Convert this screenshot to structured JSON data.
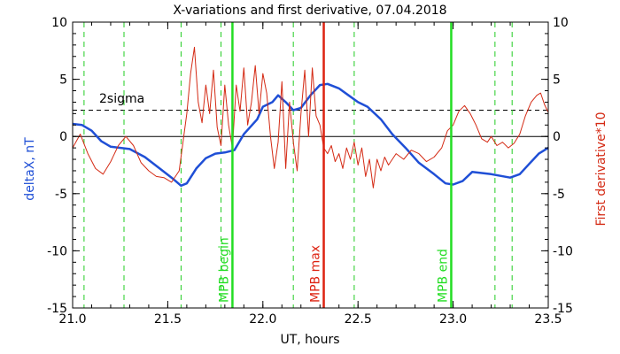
{
  "chart_data": {
    "type": "line",
    "title": "X-variations and first derivative, 07.04.2018",
    "xlabel": "UT, hours",
    "ylabel_left": "deltaX, nT",
    "ylabel_right": "First derivative*10",
    "xlim": [
      21.0,
      23.5
    ],
    "ylim": [
      -15,
      10
    ],
    "x_ticks": [
      "21.0",
      "21.5",
      "22.0",
      "22.5",
      "23.0",
      "23.5"
    ],
    "y_ticks": [
      "-15",
      "-10",
      "-5",
      "0",
      "5",
      "10"
    ],
    "sigma_label": "2sigma",
    "sigma_level": 2.3,
    "colors": {
      "deltaX": "#1f4fd6",
      "derivative": "#d42a14",
      "mpb_green": "#22dd22",
      "mpb_red": "#dd2211",
      "dashed_green": "#22cc22"
    },
    "markers": [
      {
        "label": "MPB begin",
        "x": 21.84,
        "color": "#22dd22"
      },
      {
        "label": "MPB max",
        "x": 22.32,
        "color": "#dd2211"
      },
      {
        "label": "MPB end",
        "x": 22.99,
        "color": "#22dd22"
      }
    ],
    "dashed_lines_x": [
      21.06,
      21.27,
      21.57,
      21.78,
      22.16,
      22.48,
      23.22,
      23.31
    ],
    "series": [
      {
        "id": "deltaX",
        "values": [
          [
            21.0,
            1.1
          ],
          [
            21.05,
            1.0
          ],
          [
            21.1,
            0.5
          ],
          [
            21.15,
            -0.4
          ],
          [
            21.2,
            -0.9
          ],
          [
            21.3,
            -1.1
          ],
          [
            21.38,
            -1.8
          ],
          [
            21.45,
            -2.7
          ],
          [
            21.52,
            -3.6
          ],
          [
            21.57,
            -4.3
          ],
          [
            21.6,
            -4.1
          ],
          [
            21.65,
            -2.8
          ],
          [
            21.7,
            -1.9
          ],
          [
            21.75,
            -1.5
          ],
          [
            21.8,
            -1.4
          ],
          [
            21.85,
            -1.2
          ],
          [
            21.9,
            0.2
          ],
          [
            21.97,
            1.5
          ],
          [
            22.0,
            2.6
          ],
          [
            22.05,
            3.0
          ],
          [
            22.08,
            3.6
          ],
          [
            22.12,
            3.0
          ],
          [
            22.16,
            2.3
          ],
          [
            22.2,
            2.5
          ],
          [
            22.25,
            3.6
          ],
          [
            22.3,
            4.5
          ],
          [
            22.34,
            4.6
          ],
          [
            22.4,
            4.2
          ],
          [
            22.45,
            3.6
          ],
          [
            22.5,
            3.0
          ],
          [
            22.55,
            2.6
          ],
          [
            22.62,
            1.5
          ],
          [
            22.68,
            0.2
          ],
          [
            22.75,
            -1.0
          ],
          [
            22.82,
            -2.3
          ],
          [
            22.9,
            -3.3
          ],
          [
            22.96,
            -4.1
          ],
          [
            23.0,
            -4.2
          ],
          [
            23.05,
            -3.9
          ],
          [
            23.1,
            -3.1
          ],
          [
            23.2,
            -3.3
          ],
          [
            23.3,
            -3.6
          ],
          [
            23.35,
            -3.3
          ],
          [
            23.4,
            -2.4
          ],
          [
            23.45,
            -1.5
          ],
          [
            23.5,
            -1.0
          ]
        ]
      },
      {
        "id": "derivative",
        "values": [
          [
            21.0,
            -1.0
          ],
          [
            21.04,
            0.2
          ],
          [
            21.08,
            -1.5
          ],
          [
            21.12,
            -2.8
          ],
          [
            21.16,
            -3.3
          ],
          [
            21.2,
            -2.2
          ],
          [
            21.24,
            -0.8
          ],
          [
            21.28,
            0.0
          ],
          [
            21.32,
            -0.8
          ],
          [
            21.36,
            -2.3
          ],
          [
            21.4,
            -3.0
          ],
          [
            21.44,
            -3.5
          ],
          [
            21.48,
            -3.6
          ],
          [
            21.52,
            -4.0
          ],
          [
            21.56,
            -3.0
          ],
          [
            21.58,
            -0.5
          ],
          [
            21.6,
            2.0
          ],
          [
            21.62,
            5.5
          ],
          [
            21.64,
            7.8
          ],
          [
            21.66,
            3.0
          ],
          [
            21.68,
            1.2
          ],
          [
            21.7,
            4.5
          ],
          [
            21.72,
            2.0
          ],
          [
            21.74,
            5.8
          ],
          [
            21.76,
            0.8
          ],
          [
            21.78,
            -0.8
          ],
          [
            21.8,
            4.5
          ],
          [
            21.82,
            1.0
          ],
          [
            21.84,
            -1.0
          ],
          [
            21.86,
            4.5
          ],
          [
            21.88,
            2.2
          ],
          [
            21.9,
            6.0
          ],
          [
            21.92,
            1.0
          ],
          [
            21.94,
            3.0
          ],
          [
            21.96,
            6.2
          ],
          [
            21.98,
            2.0
          ],
          [
            22.0,
            5.5
          ],
          [
            22.02,
            3.8
          ],
          [
            22.04,
            0.0
          ],
          [
            22.06,
            -2.8
          ],
          [
            22.08,
            -0.5
          ],
          [
            22.1,
            4.8
          ],
          [
            22.12,
            -2.8
          ],
          [
            22.14,
            3.0
          ],
          [
            22.16,
            -0.5
          ],
          [
            22.18,
            -3.0
          ],
          [
            22.2,
            2.0
          ],
          [
            22.22,
            5.8
          ],
          [
            22.24,
            0.0
          ],
          [
            22.26,
            6.0
          ],
          [
            22.28,
            1.8
          ],
          [
            22.3,
            1.0
          ],
          [
            22.32,
            -1.0
          ],
          [
            22.34,
            -1.5
          ],
          [
            22.36,
            -0.8
          ],
          [
            22.38,
            -2.2
          ],
          [
            22.4,
            -1.5
          ],
          [
            22.42,
            -2.8
          ],
          [
            22.44,
            -1.0
          ],
          [
            22.46,
            -2.0
          ],
          [
            22.48,
            -0.5
          ],
          [
            22.5,
            -2.5
          ],
          [
            22.52,
            -1.0
          ],
          [
            22.54,
            -3.5
          ],
          [
            22.56,
            -2.0
          ],
          [
            22.58,
            -4.5
          ],
          [
            22.6,
            -2.0
          ],
          [
            22.62,
            -3.0
          ],
          [
            22.64,
            -1.8
          ],
          [
            22.66,
            -2.5
          ],
          [
            22.7,
            -1.5
          ],
          [
            22.74,
            -2.0
          ],
          [
            22.78,
            -1.2
          ],
          [
            22.82,
            -1.5
          ],
          [
            22.86,
            -2.2
          ],
          [
            22.9,
            -1.8
          ],
          [
            22.94,
            -1.0
          ],
          [
            22.97,
            0.5
          ],
          [
            23.0,
            1.0
          ],
          [
            23.03,
            2.2
          ],
          [
            23.06,
            2.7
          ],
          [
            23.09,
            2.0
          ],
          [
            23.12,
            1.0
          ],
          [
            23.15,
            -0.2
          ],
          [
            23.18,
            -0.5
          ],
          [
            23.2,
            0.0
          ],
          [
            23.23,
            -0.8
          ],
          [
            23.26,
            -0.5
          ],
          [
            23.29,
            -1.0
          ],
          [
            23.32,
            -0.6
          ],
          [
            23.35,
            0.2
          ],
          [
            23.38,
            1.8
          ],
          [
            23.41,
            3.0
          ],
          [
            23.44,
            3.6
          ],
          [
            23.46,
            3.8
          ],
          [
            23.48,
            2.8
          ],
          [
            23.5,
            2.1
          ]
        ]
      }
    ]
  }
}
